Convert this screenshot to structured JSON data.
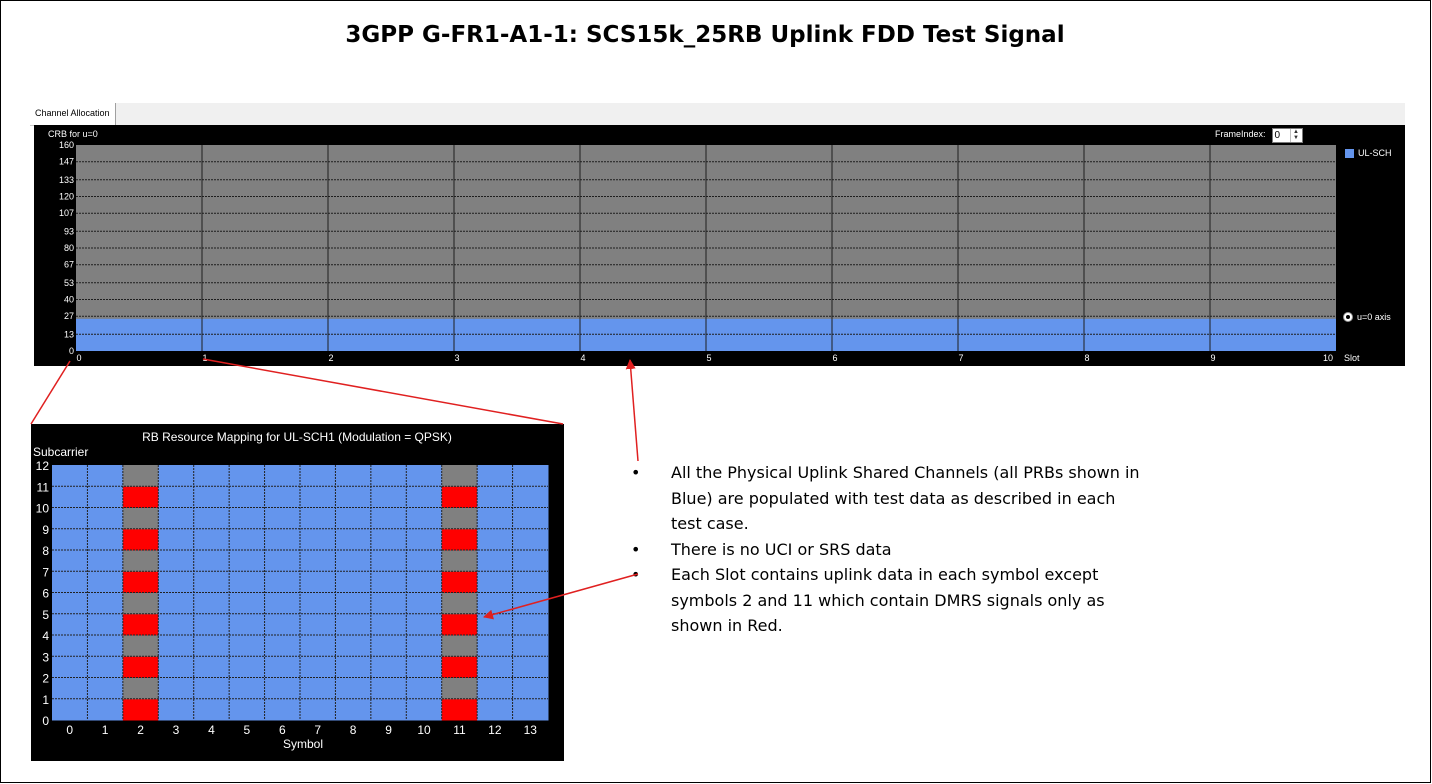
{
  "title": "3GPP G-FR1-A1-1: SCS15k_25RB Uplink FDD Test Signal",
  "tab": {
    "label": "Channel Allocation"
  },
  "frame_index": {
    "label": "FrameIndex:",
    "value": "0"
  },
  "legend": {
    "label": "UL-SCH",
    "color": "#6495ed"
  },
  "axis_option": {
    "label": "u=0 axis"
  },
  "notes": [
    "All the Physical Uplink Shared Channels (all PRBs shown in Blue) are populated with test data as described in each test case.",
    "There is no UCI or SRS data",
    "Each Slot contains uplink data in each symbol except symbols 2 and 11 which contain DMRS signals only as shown in Red."
  ],
  "bullet_char": "•",
  "chart_data": [
    {
      "type": "area",
      "ylabel": "CRB for u=0",
      "xlabel": "Slot",
      "x_ticks": [
        0,
        1,
        2,
        3,
        4,
        5,
        6,
        7,
        8,
        9,
        10
      ],
      "y_ticks": [
        0,
        13,
        27,
        40,
        53,
        67,
        80,
        93,
        107,
        120,
        133,
        147,
        160
      ],
      "xlim": [
        0,
        10
      ],
      "ylim": [
        0,
        160
      ],
      "allocated_crb": 25,
      "series": [
        {
          "name": "UL-SCH",
          "from_slot": 0,
          "to_slot": 10,
          "crb_start": 0,
          "crb_end": 25
        }
      ],
      "colors": {
        "background": "#000000",
        "plot": "#808080",
        "allocation": "#6495ed"
      },
      "grid": true,
      "legend_position": "right"
    },
    {
      "type": "heatmap",
      "title": "RB Resource Mapping for UL-SCH1 (Modulation = QPSK)",
      "ylabel": "Subcarrier",
      "xlabel": "Symbol",
      "x_ticks": [
        0,
        1,
        2,
        3,
        4,
        5,
        6,
        7,
        8,
        9,
        10,
        11,
        12,
        13
      ],
      "y_ticks": [
        0,
        1,
        2,
        3,
        4,
        5,
        6,
        7,
        8,
        9,
        10,
        11,
        12
      ],
      "symbols": 14,
      "subcarriers": 12,
      "dmrs_symbols": [
        2,
        11
      ],
      "dmrs_subcarriers": [
        0,
        2,
        4,
        6,
        8,
        10
      ],
      "colors": {
        "data": "#6495ed",
        "dmrs": "#ff0000",
        "empty": "#808080"
      },
      "grid": true
    }
  ]
}
